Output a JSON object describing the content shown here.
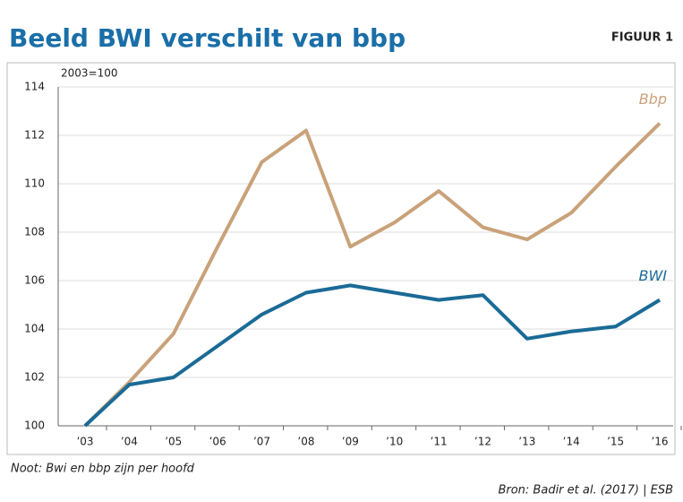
{
  "chart_data": {
    "type": "line",
    "title": "Beeld BWI verschilt van bbp",
    "figure_label": "FIGUUR 1",
    "y_axis_label": "2003=100",
    "note": "Noot: Bwi en bbp zijn per hoofd",
    "source": "Bron: Badir et al. (2017) | ESB",
    "categories": [
      "’03",
      "’04",
      "’05",
      "’06",
      "’07",
      "’08",
      "’09",
      "’10",
      "’11",
      "’12",
      "’13",
      "’14",
      "’15",
      "’16"
    ],
    "series": [
      {
        "name": "Bbp",
        "color": "#c9a27a",
        "values": [
          100,
          101.8,
          103.8,
          107.4,
          110.9,
          112.2,
          107.4,
          108.4,
          109.7,
          108.2,
          107.7,
          108.8,
          110.7,
          112.5
        ]
      },
      {
        "name": "BWI",
        "color": "#1a6b96",
        "values": [
          100,
          101.7,
          102.0,
          103.3,
          104.6,
          105.5,
          105.8,
          105.5,
          105.2,
          105.4,
          103.6,
          103.9,
          104.1,
          105.2
        ]
      }
    ],
    "ylim": [
      100,
      114
    ],
    "yticks": [
      100,
      102,
      104,
      106,
      108,
      110,
      112,
      114
    ],
    "grid": true
  }
}
